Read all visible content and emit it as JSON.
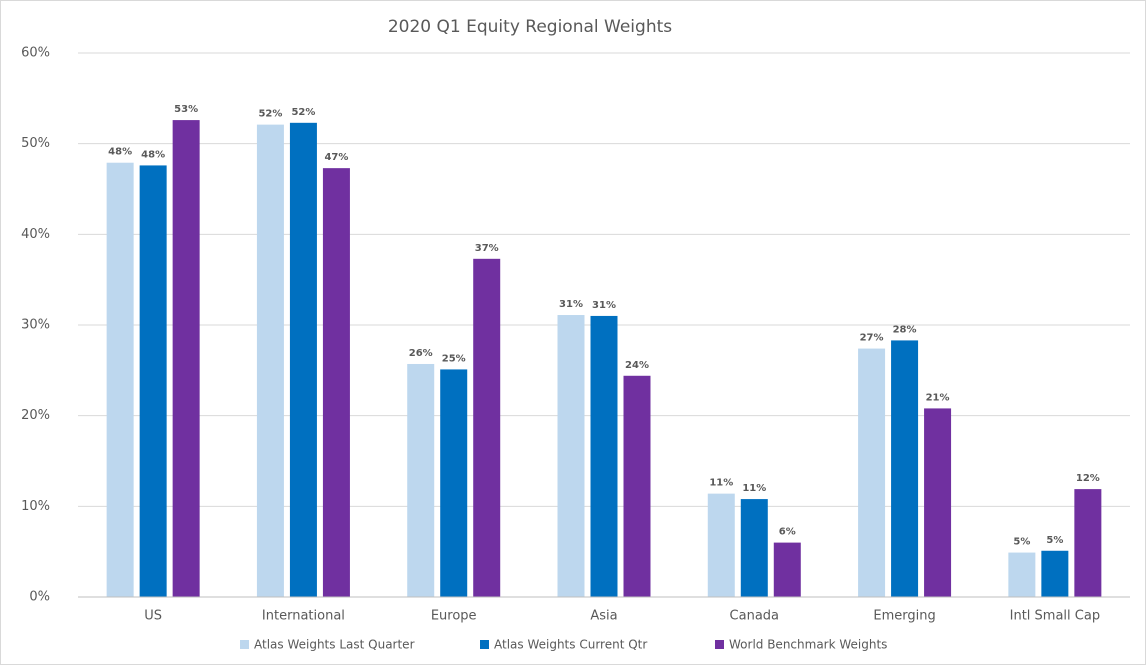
{
  "chart_data": {
    "type": "bar",
    "title": "2020 Q1 Equity Regional Weights",
    "categories": [
      "US",
      "International",
      "Europe",
      "Asia",
      "Canada",
      "Emerging",
      "Intl Small Cap"
    ],
    "series": [
      {
        "name": "Atlas Weights Last Quarter",
        "color": "#bdd7ee",
        "values": [
          47.9,
          52.1,
          25.7,
          31.1,
          11.4,
          27.4,
          4.9
        ],
        "value_labels": [
          "48%",
          "52%",
          "26%",
          "31%",
          "11%",
          "27%",
          "5%"
        ]
      },
      {
        "name": "Atlas Weights Current Qtr",
        "color": "#0070c0",
        "values": [
          47.6,
          52.3,
          25.1,
          31.0,
          10.8,
          28.3,
          5.1
        ],
        "value_labels": [
          "48%",
          "52%",
          "25%",
          "31%",
          "11%",
          "28%",
          "5%"
        ]
      },
      {
        "name": "World Benchmark Weights",
        "color": "#7030a0",
        "values": [
          52.6,
          47.3,
          37.3,
          24.4,
          6.0,
          20.8,
          11.9
        ],
        "value_labels": [
          "53%",
          "47%",
          "37%",
          "24%",
          "6%",
          "21%",
          "12%"
        ]
      }
    ],
    "ylim": [
      0,
      60
    ],
    "yticks": [
      {
        "value": 0,
        "label": "0%"
      },
      {
        "value": 10,
        "label": "10%"
      },
      {
        "value": 20,
        "label": "20%"
      },
      {
        "value": 30,
        "label": "30%"
      },
      {
        "value": 40,
        "label": "40%"
      },
      {
        "value": 50,
        "label": "50%"
      },
      {
        "value": 60,
        "label": "60%"
      }
    ],
    "grid": true,
    "legend": "bottom"
  }
}
